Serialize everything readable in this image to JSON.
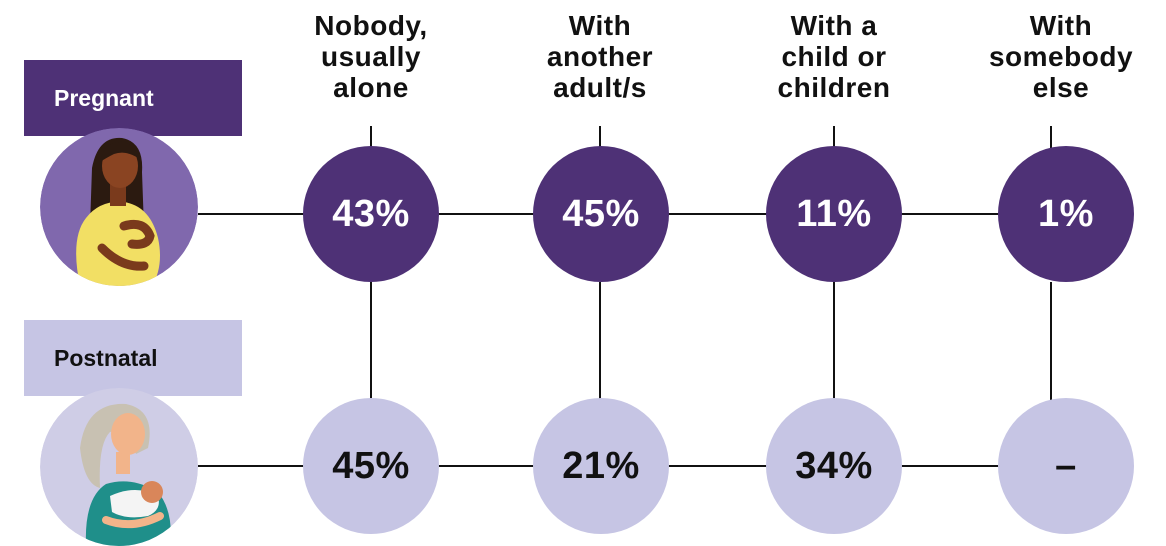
{
  "colors": {
    "pregnant": "#4e3176",
    "postnatal": "#c6c5e4",
    "pregnant_avatar_bg": "#8068ad",
    "postnatal_avatar_bg": "#cfcde6"
  },
  "icons": {
    "pregnant": "pregnant-woman-illustration",
    "postnatal": "breastfeeding-mother-illustration"
  },
  "chart_data": {
    "type": "table",
    "columns": [
      {
        "lines": [
          "Nobody,",
          "usually",
          "alone"
        ]
      },
      {
        "lines": [
          "With",
          "another",
          "adult/s"
        ]
      },
      {
        "lines": [
          "With a",
          "child or",
          "children"
        ]
      },
      {
        "lines": [
          "With",
          "somebody",
          "else"
        ]
      }
    ],
    "rows": [
      {
        "label": "Pregnant",
        "values": [
          "43%",
          "45%",
          "11%",
          "1%"
        ]
      },
      {
        "label": "Postnatal",
        "values": [
          "45%",
          "21%",
          "34%",
          "–"
        ]
      }
    ]
  }
}
